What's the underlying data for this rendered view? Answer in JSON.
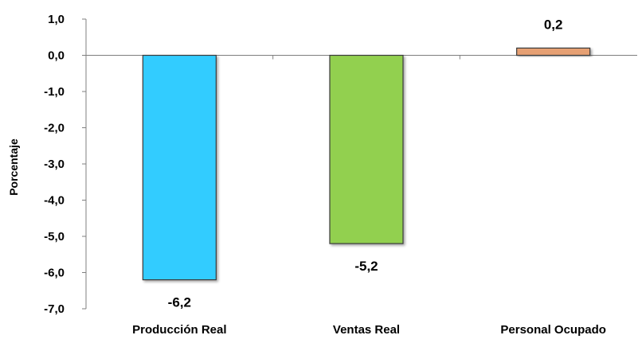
{
  "chart_data": {
    "type": "bar",
    "categories": [
      "Producción Real",
      "Ventas Real",
      "Personal Ocupado"
    ],
    "values": [
      -6.2,
      -5.2,
      0.2
    ],
    "value_labels": [
      "-6,2",
      "-5,2",
      "0,2"
    ],
    "ylabel": "Porcentaje",
    "ylim": [
      -7,
      1
    ],
    "yticks": [
      1,
      0,
      -1,
      -2,
      -3,
      -4,
      -5,
      -6,
      -7
    ],
    "ytick_labels": [
      "1,0",
      "0,0",
      "-1,0",
      "-2,0",
      "-3,0",
      "-4,0",
      "-5,0",
      "-6,0",
      "-7,0"
    ],
    "colors": [
      "#33CCFF",
      "#92D050",
      "#E6A073"
    ],
    "grid": false,
    "legend": "none"
  }
}
